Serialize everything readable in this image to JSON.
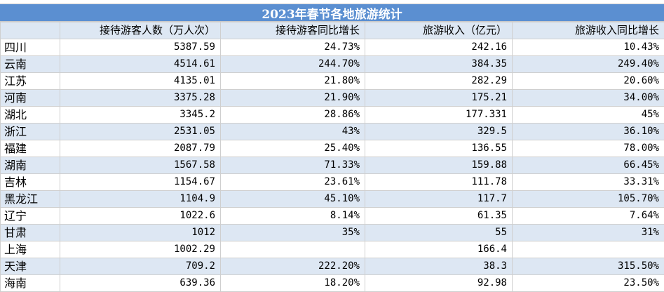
{
  "title": "2023年春节各地旅游统计",
  "headers": [
    "",
    "接待游客人数（万人次）",
    "接待游客同比增长",
    "旅游收入（亿元）",
    "旅游收入同比增长"
  ],
  "rows": [
    [
      "四川",
      "5387.59",
      "24.73%",
      "242.16",
      "10.43%"
    ],
    [
      "云南",
      "4514.61",
      "244.70%",
      "384.35",
      "249.40%"
    ],
    [
      "江苏",
      "4135.01",
      "21.80%",
      "282.29",
      "20.60%"
    ],
    [
      "河南",
      "3375.28",
      "21.90%",
      "175.21",
      "34.00%"
    ],
    [
      "湖北",
      "3345.2",
      "28.86%",
      "177.331",
      "45%"
    ],
    [
      "浙江",
      "2531.05",
      "43%",
      "329.5",
      "36.10%"
    ],
    [
      "福建",
      "2087.79",
      "25.40%",
      "136.55",
      "78.00%"
    ],
    [
      "湖南",
      "1567.58",
      "71.33%",
      "159.88",
      "66.45%"
    ],
    [
      "吉林",
      "1154.67",
      "23.61%",
      "111.78",
      "33.31%"
    ],
    [
      "黑龙江",
      "1104.9",
      "45.10%",
      "117.7",
      "105.70%"
    ],
    [
      "辽宁",
      "1022.6",
      "8.14%",
      "61.35",
      "7.64%"
    ],
    [
      "甘肃",
      "1012",
      "35%",
      "55",
      "31%"
    ],
    [
      "上海",
      "1002.29",
      "",
      "166.4",
      ""
    ],
    [
      "天津",
      "709.2",
      "222.20%",
      "38.3",
      "315.50%"
    ],
    [
      "海南",
      "639.36",
      "18.20%",
      "92.98",
      "23.50%"
    ]
  ],
  "colors": {
    "title_bg": "#5b8fd1",
    "band_bg": "#dde7f3",
    "title_text": "#ffffff"
  }
}
